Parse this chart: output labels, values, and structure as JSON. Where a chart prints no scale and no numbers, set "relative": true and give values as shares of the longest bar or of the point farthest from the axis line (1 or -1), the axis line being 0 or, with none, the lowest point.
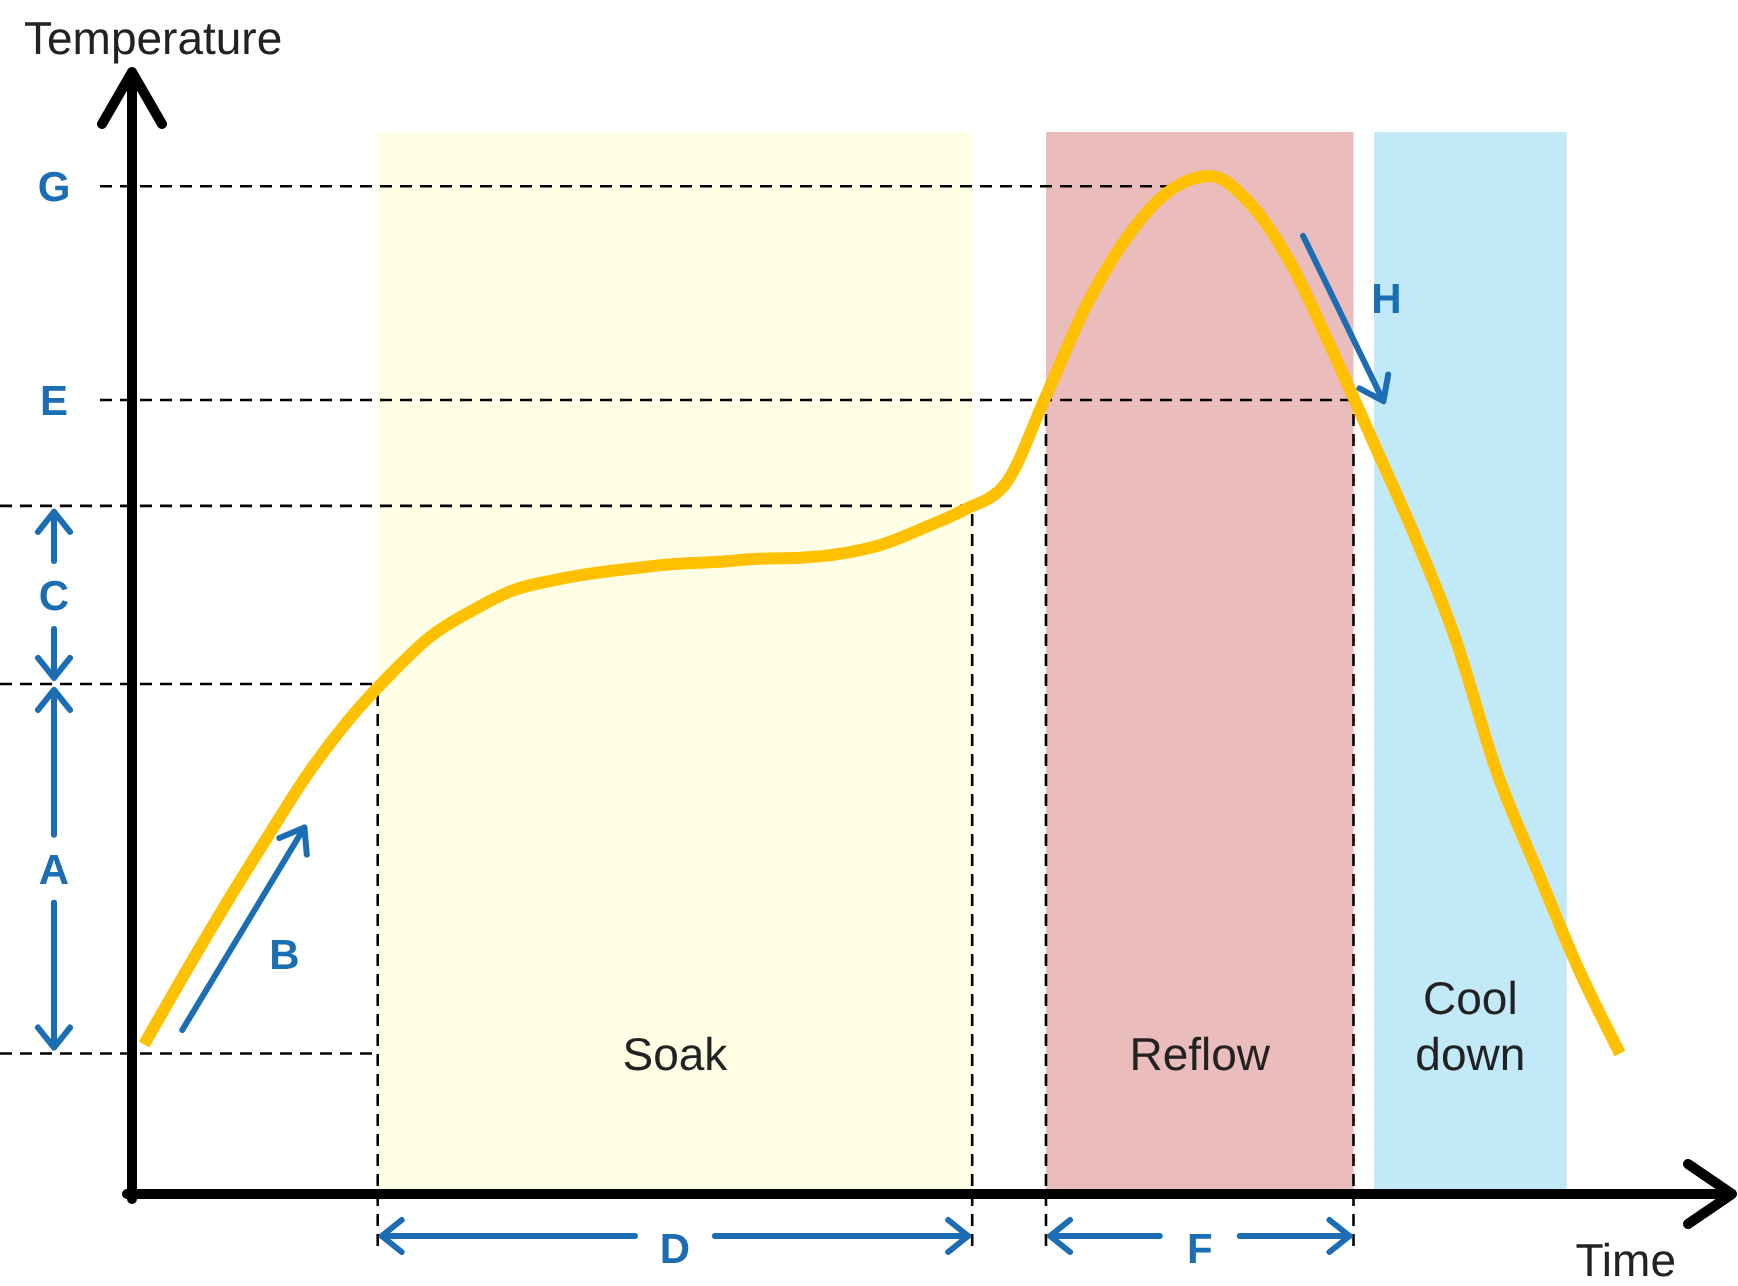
{
  "chart_data": {
    "type": "line",
    "relative": true,
    "xlabel": "Time",
    "ylabel": "Temperature",
    "categories": [
      null,
      null,
      null,
      null,
      null,
      null,
      null,
      null,
      null,
      null,
      null,
      null,
      null,
      null,
      null,
      null,
      null,
      null,
      null,
      null,
      null,
      null,
      null,
      null,
      null,
      null,
      null,
      null,
      null,
      null,
      null,
      null,
      null,
      null,
      null,
      null,
      null
    ],
    "series": [
      {
        "color": "#ffc000",
        "values": [
          0.147,
          0.217,
          0.285,
          0.35,
          0.413,
          0.466,
          0.51,
          0.548,
          0.573,
          0.593,
          0.603,
          0.61,
          0.615,
          0.619,
          0.621,
          0.624,
          0.625,
          0.629,
          0.638,
          0.654,
          0.672,
          0.697,
          0.784,
          0.874,
          0.941,
          0.985,
          1.0,
          0.972,
          0.912,
          0.827,
          0.737,
          0.646,
          0.544,
          0.414,
          0.316,
          0.22,
          0.138
        ]
      }
    ],
    "ref_lines": [
      {
        "axis": "y",
        "value": 0.99,
        "label": "G",
        "line_style": "dashed"
      },
      {
        "axis": "y",
        "value": 0.78,
        "label": "E",
        "line_style": "dashed"
      },
      {
        "axis": "y",
        "value": 0.676,
        "line_style": "dashed"
      },
      {
        "axis": "y",
        "value": 0.501,
        "line_style": "dashed"
      },
      {
        "axis": "y",
        "value": 0.138,
        "line_style": "dashed"
      }
    ],
    "annotations": [
      "Soak",
      "Reflow",
      "Cool down",
      "C",
      "A",
      "B",
      "H",
      "D",
      "F"
    ]
  }
}
